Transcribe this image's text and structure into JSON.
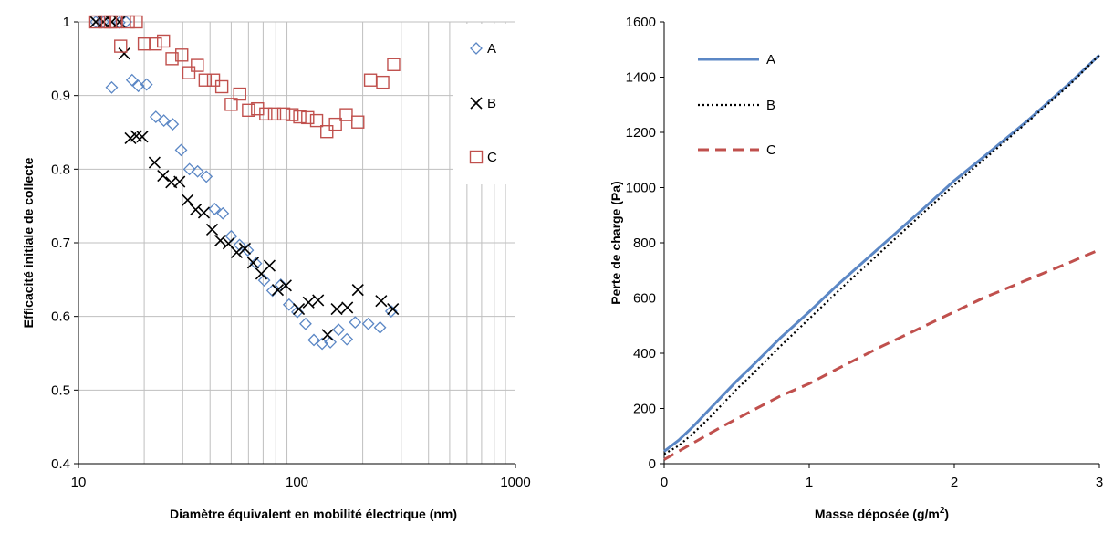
{
  "colors": {
    "A": "#5b87c5",
    "B": "#000000",
    "C": "#c0504d",
    "grid": "#bfbfbf",
    "axis": "#000000"
  },
  "chart_data": [
    {
      "type": "scatter",
      "xlabel": "Diamètre équivalent en mobilité électrique (nm)",
      "ylabel": "Efficacité initiale de collecte",
      "x_scale": "log",
      "xlim": [
        10,
        1000
      ],
      "ylim": [
        0.4,
        1.0
      ],
      "x_ticks": [
        10,
        100,
        1000
      ],
      "x_tick_labels": [
        "10",
        "100",
        "1000"
      ],
      "y_ticks": [
        0.4,
        0.5,
        0.6,
        0.7,
        0.8,
        0.9,
        1.0
      ],
      "y_tick_labels": [
        "0.4",
        "0.5",
        "0.6",
        "0.7",
        "0.8",
        "0.9",
        "1"
      ],
      "grid": true,
      "legend_position": "right",
      "series": [
        {
          "name": "A",
          "marker": "diamond",
          "points": [
            [
              12,
              1.0
            ],
            [
              13,
              1.0
            ],
            [
              14.2,
              0.911
            ],
            [
              15.4,
              0.999
            ],
            [
              16.5,
              1.0
            ],
            [
              17.6,
              0.921
            ],
            [
              18.8,
              0.913
            ],
            [
              20.5,
              0.915
            ],
            [
              22.6,
              0.871
            ],
            [
              24.6,
              0.866
            ],
            [
              27.0,
              0.861
            ],
            [
              29.5,
              0.826
            ],
            [
              32.2,
              0.8
            ],
            [
              35.1,
              0.797
            ],
            [
              38.5,
              0.79
            ],
            [
              42.0,
              0.746
            ],
            [
              45.8,
              0.74
            ],
            [
              50.0,
              0.709
            ],
            [
              54.6,
              0.697
            ],
            [
              59.5,
              0.69
            ],
            [
              64.9,
              0.672
            ],
            [
              70.8,
              0.649
            ],
            [
              77.3,
              0.635
            ],
            [
              84.3,
              0.643
            ],
            [
              92.0,
              0.616
            ],
            [
              100.4,
              0.606
            ],
            [
              109.5,
              0.59
            ],
            [
              119.5,
              0.568
            ],
            [
              130.4,
              0.563
            ],
            [
              142.2,
              0.565
            ],
            [
              155.1,
              0.582
            ],
            [
              169.2,
              0.569
            ],
            [
              184.6,
              0.592
            ],
            [
              212.0,
              0.59
            ],
            [
              240.0,
              0.585
            ],
            [
              270.0,
              0.607
            ]
          ]
        },
        {
          "name": "B",
          "marker": "x",
          "points": [
            [
              12,
              1.0
            ],
            [
              13,
              1.0
            ],
            [
              14.2,
              1.0
            ],
            [
              15.4,
              1.0
            ],
            [
              16.2,
              0.957
            ],
            [
              17.3,
              0.842
            ],
            [
              18.4,
              0.845
            ],
            [
              19.6,
              0.844
            ],
            [
              22.3,
              0.809
            ],
            [
              24.4,
              0.791
            ],
            [
              26.6,
              0.782
            ],
            [
              29.0,
              0.783
            ],
            [
              31.6,
              0.758
            ],
            [
              34.4,
              0.745
            ],
            [
              37.5,
              0.741
            ],
            [
              40.9,
              0.718
            ],
            [
              44.6,
              0.703
            ],
            [
              48.6,
              0.699
            ],
            [
              53.0,
              0.687
            ],
            [
              57.8,
              0.692
            ],
            [
              63.0,
              0.673
            ],
            [
              68.7,
              0.658
            ],
            [
              74.9,
              0.669
            ],
            [
              81.7,
              0.636
            ],
            [
              89.0,
              0.642
            ],
            [
              102.0,
              0.61
            ],
            [
              113.0,
              0.619
            ],
            [
              125.0,
              0.622
            ],
            [
              138.0,
              0.575
            ],
            [
              152.0,
              0.61
            ],
            [
              170.0,
              0.612
            ],
            [
              190.0,
              0.636
            ],
            [
              243.0,
              0.621
            ],
            [
              275.0,
              0.61
            ]
          ]
        },
        {
          "name": "C",
          "marker": "square",
          "points": [
            [
              12,
              1.0
            ],
            [
              13.2,
              1.0
            ],
            [
              14.0,
              1.0
            ],
            [
              14.8,
              1.0
            ],
            [
              15.6,
              0.967
            ],
            [
              16.9,
              1.0
            ],
            [
              18.4,
              1.0
            ],
            [
              20.0,
              0.97
            ],
            [
              22.5,
              0.97
            ],
            [
              24.5,
              0.974
            ],
            [
              26.8,
              0.95
            ],
            [
              29.7,
              0.955
            ],
            [
              32.0,
              0.931
            ],
            [
              35.0,
              0.941
            ],
            [
              38.0,
              0.921
            ],
            [
              41.5,
              0.921
            ],
            [
              45.3,
              0.912
            ],
            [
              50.0,
              0.888
            ],
            [
              54.7,
              0.902
            ],
            [
              60.0,
              0.88
            ],
            [
              66.0,
              0.882
            ],
            [
              72.0,
              0.875
            ],
            [
              79.0,
              0.875
            ],
            [
              87.0,
              0.875
            ],
            [
              95.0,
              0.874
            ],
            [
              103.0,
              0.871
            ],
            [
              112.0,
              0.87
            ],
            [
              123.0,
              0.866
            ],
            [
              137.0,
              0.851
            ],
            [
              150.0,
              0.861
            ],
            [
              168.0,
              0.874
            ],
            [
              190.0,
              0.864
            ],
            [
              217.0,
              0.921
            ],
            [
              247.0,
              0.918
            ],
            [
              277.0,
              0.942
            ]
          ]
        }
      ]
    },
    {
      "type": "line",
      "xlabel": "Masse déposée (g/m²)",
      "ylabel": "Perte de charge (Pa)",
      "xlim": [
        0,
        3
      ],
      "ylim": [
        0,
        1600
      ],
      "x_ticks": [
        0,
        1,
        2,
        3
      ],
      "x_tick_labels": [
        "0",
        "1",
        "2",
        "3"
      ],
      "y_ticks": [
        0,
        200,
        400,
        600,
        800,
        1000,
        1200,
        1400,
        1600
      ],
      "y_tick_labels": [
        "0",
        "200",
        "400",
        "600",
        "800",
        "1000",
        "1200",
        "1400",
        "1600"
      ],
      "grid": false,
      "legend_position": "top-left",
      "series": [
        {
          "name": "A",
          "style": "solid",
          "x": [
            0,
            0.1,
            0.2,
            0.3,
            0.4,
            0.5,
            0.6,
            0.8,
            1.0,
            1.2,
            1.5,
            1.8,
            2.0,
            2.2,
            2.5,
            2.8,
            3.0
          ],
          "y": [
            45,
            85,
            135,
            190,
            245,
            300,
            350,
            455,
            550,
            650,
            790,
            930,
            1025,
            1110,
            1240,
            1380,
            1480
          ]
        },
        {
          "name": "B",
          "style": "dotted",
          "x": [
            0,
            0.1,
            0.2,
            0.3,
            0.4,
            0.5,
            0.6,
            0.8,
            1.0,
            1.2,
            1.5,
            1.8,
            2.0,
            2.2,
            2.5,
            2.8,
            3.0
          ],
          "y": [
            35,
            65,
            110,
            160,
            215,
            270,
            320,
            425,
            525,
            625,
            770,
            915,
            1010,
            1100,
            1235,
            1375,
            1480
          ]
        },
        {
          "name": "C",
          "style": "dashed",
          "x": [
            0,
            0.1,
            0.2,
            0.4,
            0.6,
            0.8,
            1.0,
            1.2,
            1.5,
            1.8,
            2.0,
            2.2,
            2.5,
            2.8,
            3.0
          ],
          "y": [
            15,
            45,
            75,
            135,
            190,
            245,
            290,
            345,
            425,
            500,
            550,
            600,
            665,
            730,
            775
          ]
        }
      ]
    }
  ]
}
